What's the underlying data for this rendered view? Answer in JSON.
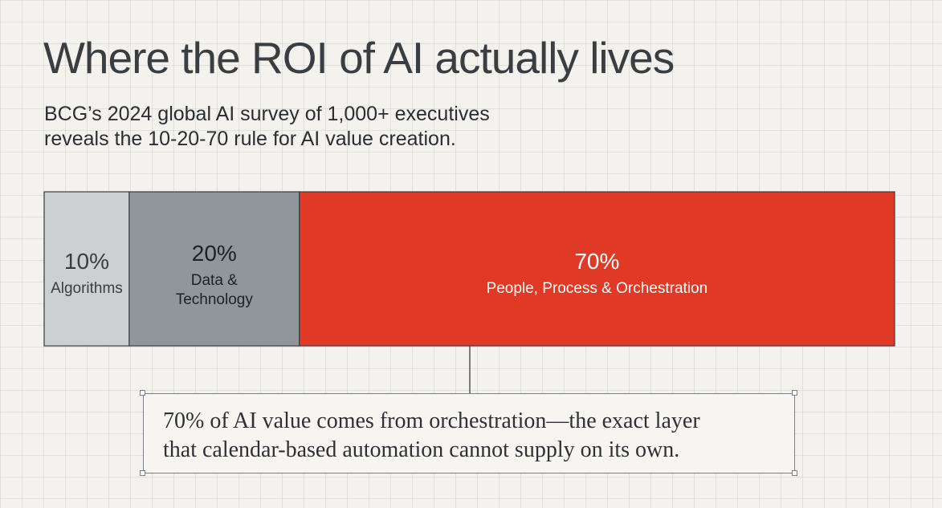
{
  "title": "Where the ROI of AI actually lives",
  "subtitle": {
    "line1": "BCG’s 2024 global AI survey of 1,000+ executives",
    "line2": "reveals the 10-20-70 rule for AI value creation."
  },
  "chart_data": {
    "type": "bar",
    "orientation": "horizontal-stacked",
    "categories": [
      "Algorithms",
      "Data & Technology",
      "People, Process & Orchestration"
    ],
    "values": [
      10,
      20,
      70
    ],
    "value_labels": [
      "10%",
      "20%",
      "70%"
    ],
    "label_lines": [
      [
        "Algorithms"
      ],
      [
        "Data &",
        "Technology"
      ],
      [
        "People, Process & Orchestration"
      ]
    ],
    "colors": [
      "#cdd0d3",
      "#8f969c",
      "#e03a26"
    ],
    "text_colors": [
      "#3a3d40",
      "#1f2224",
      "#ffffff"
    ],
    "title": "",
    "xlabel": "",
    "ylabel": "",
    "xlim": [
      0,
      100
    ],
    "grid": false,
    "legend": "none"
  },
  "callout": {
    "line1": "70% of AI value comes from orchestration—the exact layer",
    "line2": "that calendar-based automation cannot supply on its own."
  },
  "colors": {
    "background": "#f3f2ee",
    "border": "#3a3d40",
    "connector": "#3a3d40"
  }
}
